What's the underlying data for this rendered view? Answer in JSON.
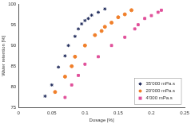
{
  "chart_data": {
    "type": "scatter",
    "x_label": "Dosage [%]",
    "y_label": "Water retention [%]",
    "xlim": [
      0,
      0.25
    ],
    "xticks": [
      0,
      0.05,
      0.1,
      0.15,
      0.2,
      0.25
    ],
    "ylim": [
      75,
      100
    ],
    "yticks": [
      75,
      80,
      85,
      90,
      95,
      100
    ],
    "grid": false,
    "legend": "lower right",
    "series": [
      {
        "name": "35'000 mPa.s",
        "color": "#1f2a5a",
        "marker": "star",
        "x": [
          0.04,
          0.05,
          0.06,
          0.07,
          0.075,
          0.085,
          0.09,
          0.095,
          0.1,
          0.105,
          0.11,
          0.12,
          0.13
        ],
        "values": [
          77.8,
          80.5,
          84.8,
          87.5,
          90,
          92.2,
          94,
          95.2,
          96,
          96.5,
          97.3,
          98,
          98.8
        ]
      },
      {
        "name": "20'000 mPa.s",
        "color": "#f07f2a",
        "marker": "circle",
        "x": [
          0.055,
          0.07,
          0.08,
          0.085,
          0.1,
          0.115,
          0.125,
          0.13,
          0.14,
          0.15,
          0.16,
          0.17
        ],
        "values": [
          78.8,
          82.5,
          85,
          87.3,
          90,
          92.5,
          93.5,
          94.5,
          95.5,
          96.8,
          97.5,
          98.5
        ]
      },
      {
        "name": "4'000 mPa.s",
        "color": "#e0509a",
        "marker": "square",
        "x": [
          0.07,
          0.08,
          0.09,
          0.1,
          0.12,
          0.14,
          0.16,
          0.175,
          0.18,
          0.19,
          0.2,
          0.21,
          0.215
        ],
        "values": [
          77.5,
          80.5,
          82.8,
          85.5,
          87.3,
          90,
          92,
          94,
          95,
          96.5,
          97.2,
          98,
          98.5
        ]
      }
    ]
  }
}
